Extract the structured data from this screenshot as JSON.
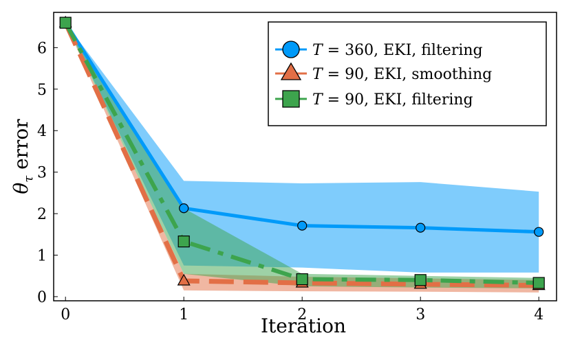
{
  "chart_data": {
    "type": "line",
    "title": "",
    "xlabel": "Iteration",
    "ylabel": "θτ error",
    "ylabel_main": "θ",
    "ylabel_sub": "τ",
    "ylabel_rest": " error",
    "xlim": [
      -0.1,
      4.15
    ],
    "ylim": [
      -0.1,
      6.85
    ],
    "xticks": [
      0,
      1,
      2,
      3,
      4
    ],
    "yticks": [
      0,
      1,
      2,
      3,
      4,
      5,
      6
    ],
    "legend_position": "top-right",
    "series": [
      {
        "name": "T = 360,  EKI,  filtering",
        "legend_var": "T",
        "legend_rest": " = 360,  EKI,  filtering",
        "color": "#009af9",
        "marker": "circle",
        "linestyle": "solid",
        "x": [
          0,
          1,
          2,
          3,
          4
        ],
        "values": [
          6.6,
          2.13,
          1.71,
          1.66,
          1.56
        ],
        "band_upper": [
          6.6,
          2.79,
          2.73,
          2.76,
          2.53
        ],
        "band_lower": [
          6.6,
          0.75,
          0.7,
          0.58,
          0.58
        ]
      },
      {
        "name": "T = 90,  EKI,  smoothing",
        "legend_var": "T",
        "legend_rest": " = 90,  EKI,  smoothing",
        "color": "#e26f46",
        "marker": "triangle",
        "linestyle": "dashed",
        "x": [
          0,
          1,
          2,
          3,
          4
        ],
        "values": [
          6.6,
          0.38,
          0.33,
          0.3,
          0.27
        ],
        "band_upper": [
          6.6,
          0.55,
          0.48,
          0.44,
          0.4
        ],
        "band_lower": [
          6.6,
          0.15,
          0.13,
          0.12,
          0.1
        ]
      },
      {
        "name": "T = 90,  EKI,  filtering",
        "legend_var": "T",
        "legend_rest": " = 90,  EKI,  filtering",
        "color": "#3da44d",
        "marker": "square",
        "linestyle": "dashdot",
        "x": [
          0,
          1,
          2,
          3,
          4
        ],
        "values": [
          6.6,
          1.33,
          0.42,
          0.4,
          0.33
        ],
        "band_upper": [
          6.6,
          2.13,
          0.55,
          0.5,
          0.45
        ],
        "band_lower": [
          6.6,
          0.55,
          0.25,
          0.22,
          0.2
        ]
      }
    ]
  }
}
